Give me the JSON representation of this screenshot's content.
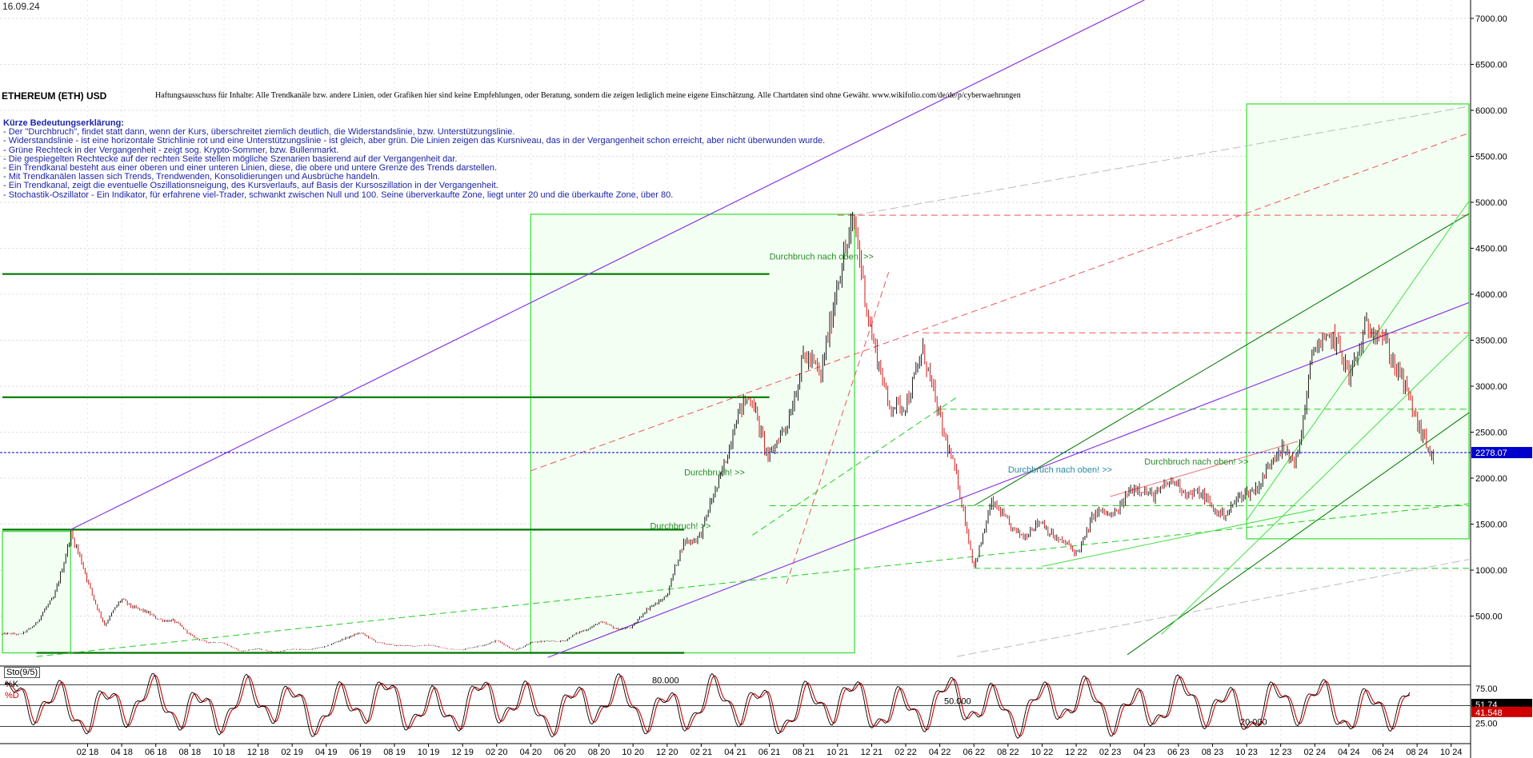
{
  "date": "16.09.24",
  "title": "ETHEREUM (ETH) USD",
  "disclaimer": "Haftungsausschuss für Inhalte: Alle Trendkanäle bzw. andere Linien, oder Grafiken hier sind keine Empfehlungen, oder Beratung, sondern die zeigen lediglich meine eigene Einschätzung. Alle Chartdaten sind ohne Gewähr.  www.wikifolio.com/de/de/p/cyberwaehrungen",
  "legend": {
    "heading": "Kürze Bedeutungserklärung:",
    "lines": [
      "- Der \"Durchbruch\", findet statt dann, wenn der Kurs, überschreitet ziemlich deutlich, die Widerstandslinie, bzw. Unterstützungslinie.",
      "- Widerstandslinie - ist eine horizontale Strichlinie rot und eine Unterstützungslinie - ist gleich, aber grün. Die Linien zeigen das Kursniveau, das in der Vergangenheit schon erreicht, aber nicht überwunden wurde.",
      "- Grüne Rechteck in der Vergangenheit - zeigt sog. Krypto-Sommer, bzw. Bullenmarkt.",
      "- Die gespiegelten Rechtecke auf der rechten Seite stellen mögliche Szenarien basierend auf der Vergangenheit dar.",
      "- Ein Trendkanal besteht aus einer oberen und einer unteren Linien, diese, die obere und untere Grenze des Trends darstellen.",
      "- Mit Trendkanälen lassen sich Trends, Trendwenden, Konsolidierungen und Ausbrüche handeln.",
      "- Ein Trendkanal, zeigt die eventuelle Oszillationsneigung, des Kursverlaufs, auf Basis der Kursoszillation in der Vergangenheit.",
      "- Stochastik-Oszillator - Ein Indikator, für erfahrene viel-Trader, schwankt zwischen Null und 100. Seine überverkaufte Zone, liegt unter 20 und die überkaufte Zone, über 80."
    ]
  },
  "colors": {
    "candle_up": "#000000",
    "candle_down": "#d00000",
    "box_green": "#33dd33",
    "box_fill": "#f3fff3",
    "dark_green": "#007700",
    "purple": "#8a3ae0",
    "red_dash": "#ee5555",
    "green_dash": "#22cc22",
    "gray_dash": "#bbbbbb",
    "price_line": "#0000cc",
    "annotation": "#2a8a2a",
    "annotation_teal": "#2a8aa0",
    "k_line": "#000000",
    "d_line": "#d00000"
  },
  "annotations": [
    {
      "text": "Durchbruch nach oben! >>",
      "date": "2021-06",
      "price": 4380,
      "color": "annotation"
    },
    {
      "text": "Durchbruch! >>",
      "date": "2021-01",
      "price": 2030,
      "color": "annotation"
    },
    {
      "text": "Durchbruch! >>",
      "date": "2020-11",
      "price": 1450,
      "color": "annotation"
    },
    {
      "text": "Durchbruch nach oben! >>",
      "date": "2022-08",
      "price": 2060,
      "color": "annotation_teal"
    },
    {
      "text": "Durchbruch nach oben! >>",
      "date": "2023-04",
      "price": 2150,
      "color": "annotation"
    }
  ],
  "chart_data": {
    "type": "candlestick",
    "x_axis": {
      "type": "date",
      "range": [
        "2017-09",
        "2024-11"
      ],
      "tick_labels": [
        "02 18",
        "04 18",
        "06 18",
        "08 18",
        "10 18",
        "12 18",
        "02 19",
        "04 19",
        "06 19",
        "08 19",
        "10 19",
        "12 19",
        "02 20",
        "04 20",
        "06 20",
        "08 20",
        "10 20",
        "12 20",
        "02 21",
        "04 21",
        "06 21",
        "08 21",
        "10 21",
        "12 21",
        "02 22",
        "04 22",
        "06 22",
        "08 22",
        "10 22",
        "12 22",
        "02 23",
        "04 23",
        "06 23",
        "08 23",
        "10 23",
        "12 23",
        "02 24",
        "04 24",
        "06 24",
        "08 24",
        "10 24"
      ]
    },
    "y_axis": {
      "position": "right",
      "ylim": [
        0,
        7200
      ],
      "ticks": [
        500,
        1000,
        1500,
        2000,
        2500,
        3000,
        3500,
        4000,
        4500,
        5000,
        5500,
        6000,
        6500,
        7000
      ],
      "tick_labels": [
        "500.00",
        "1000.00",
        "1500.00",
        "2000.00",
        "2500.00",
        "3000.00",
        "3500.00",
        "4000.00",
        "4500.00",
        "5000.00",
        "5500.00",
        "6000.00",
        "6500.00",
        "7000.00"
      ],
      "grid": true
    },
    "last_price": 2278.07,
    "last_price_label": "2278.07",
    "price_path": [
      [
        "2017-09",
        300
      ],
      [
        "2017-10",
        300
      ],
      [
        "2017-11",
        420
      ],
      [
        "2017-12",
        700
      ],
      [
        "2018-01",
        1390
      ],
      [
        "2018-02",
        880
      ],
      [
        "2018-03",
        400
      ],
      [
        "2018-04",
        680
      ],
      [
        "2018-05",
        580
      ],
      [
        "2018-06",
        470
      ],
      [
        "2018-07",
        460
      ],
      [
        "2018-08",
        290
      ],
      [
        "2018-09",
        220
      ],
      [
        "2018-10",
        200
      ],
      [
        "2018-11",
        120
      ],
      [
        "2018-12",
        140
      ],
      [
        "2019-01",
        110
      ],
      [
        "2019-02",
        135
      ],
      [
        "2019-03",
        140
      ],
      [
        "2019-04",
        165
      ],
      [
        "2019-05",
        260
      ],
      [
        "2019-06",
        310
      ],
      [
        "2019-07",
        220
      ],
      [
        "2019-08",
        175
      ],
      [
        "2019-09",
        180
      ],
      [
        "2019-10",
        180
      ],
      [
        "2019-11",
        150
      ],
      [
        "2019-12",
        130
      ],
      [
        "2020-01",
        180
      ],
      [
        "2020-02",
        230
      ],
      [
        "2020-03",
        130
      ],
      [
        "2020-04",
        205
      ],
      [
        "2020-05",
        230
      ],
      [
        "2020-06",
        230
      ],
      [
        "2020-07",
        340
      ],
      [
        "2020-08",
        430
      ],
      [
        "2020-09",
        360
      ],
      [
        "2020-10",
        390
      ],
      [
        "2020-11",
        600
      ],
      [
        "2020-12",
        740
      ],
      [
        "2021-01",
        1300
      ],
      [
        "2021-02",
        1420
      ],
      [
        "2021-03",
        1900
      ],
      [
        "2021-04",
        2700
      ],
      [
        "2021-05",
        2800
      ],
      [
        "2021-06",
        2270
      ],
      [
        "2021-07",
        2500
      ],
      [
        "2021-08",
        3430
      ],
      [
        "2021-09",
        3000
      ],
      [
        "2021-10",
        4300
      ],
      [
        "2021-11",
        4630
      ],
      [
        "2021-12",
        3680
      ],
      [
        "2022-01",
        2680
      ],
      [
        "2022-02",
        2900
      ],
      [
        "2022-03",
        3280
      ],
      [
        "2022-04",
        2730
      ],
      [
        "2022-05",
        1940
      ],
      [
        "2022-06",
        1070
      ],
      [
        "2022-07",
        1680
      ],
      [
        "2022-08",
        1550
      ],
      [
        "2022-09",
        1330
      ],
      [
        "2022-10",
        1570
      ],
      [
        "2022-11",
        1290
      ],
      [
        "2022-12",
        1200
      ],
      [
        "2023-01",
        1580
      ],
      [
        "2023-02",
        1600
      ],
      [
        "2023-03",
        1820
      ],
      [
        "2023-04",
        1870
      ],
      [
        "2023-05",
        1870
      ],
      [
        "2023-06",
        1930
      ],
      [
        "2023-07",
        1850
      ],
      [
        "2023-08",
        1650
      ],
      [
        "2023-09",
        1670
      ],
      [
        "2023-10",
        1810
      ],
      [
        "2023-11",
        2050
      ],
      [
        "2023-12",
        2280
      ],
      [
        "2024-01",
        2280
      ],
      [
        "2024-02",
        3380
      ],
      [
        "2024-03",
        3650
      ],
      [
        "2024-04",
        3010
      ],
      [
        "2024-05",
        3760
      ],
      [
        "2024-06",
        3430
      ],
      [
        "2024-07",
        3230
      ],
      [
        "2024-08",
        2510
      ],
      [
        "2024-09",
        2278
      ]
    ],
    "green_boxes": [
      {
        "x": [
          "2017-09",
          "2018-01"
        ],
        "y": [
          100,
          1420
        ]
      },
      {
        "x": [
          "2020-04",
          "2021-11"
        ],
        "y": [
          100,
          4870
        ]
      },
      {
        "x": [
          "2023-10",
          "2025-02"
        ],
        "y": [
          1340,
          6070
        ]
      }
    ],
    "horizontal_levels": [
      {
        "y": 4860,
        "style": "red_dash",
        "x": [
          "2021-10",
          "2025-02"
        ]
      },
      {
        "y": 3580,
        "style": "red_dash",
        "x": [
          "2022-03",
          "2025-02"
        ]
      },
      {
        "y": 2750,
        "style": "green_dash",
        "x": [
          "2022-04",
          "2025-02"
        ]
      },
      {
        "y": 1700,
        "style": "green_dash",
        "x": [
          "2021-06",
          "2025-02"
        ]
      },
      {
        "y": 1020,
        "style": "green_dash",
        "x": [
          "2022-06",
          "2025-02"
        ]
      },
      {
        "y": 4220,
        "style": "dark_green",
        "x": [
          "2017-09",
          "2021-06"
        ]
      },
      {
        "y": 2880,
        "style": "dark_green",
        "x": [
          "2017-09",
          "2021-06"
        ]
      },
      {
        "y": 1440,
        "style": "dark_green",
        "x": [
          "2017-09",
          "2021-01"
        ]
      },
      {
        "y": 100,
        "style": "dark_green",
        "x": [
          "2017-11",
          "2021-01"
        ]
      }
    ],
    "trend_lines": [
      {
        "from": [
          "2018-01",
          1440
        ],
        "to": [
          "2023-04",
          7200
        ],
        "style": "purple"
      },
      {
        "from": [
          "2020-05",
          50
        ],
        "to": [
          "2025-02",
          4120
        ],
        "style": "purple"
      },
      {
        "from": [
          "2020-04",
          2080
        ],
        "to": [
          "2025-02",
          5950
        ],
        "style": "red_dash"
      },
      {
        "from": [
          "2021-11",
          4860
        ],
        "to": [
          "2025-02",
          6140
        ],
        "style": "gray_dash"
      },
      {
        "from": [
          "2017-11",
          60
        ],
        "to": [
          "2025-02",
          1780
        ],
        "style": "green_dash"
      },
      {
        "from": [
          "2022-05",
          60
        ],
        "to": [
          "2025-02",
          1220
        ],
        "style": "gray_dash"
      },
      {
        "from": [
          "2021-07",
          850
        ],
        "to": [
          "2022-01",
          4240
        ],
        "style": "red_dash"
      },
      {
        "from": [
          "2021-05",
          1380
        ],
        "to": [
          "2022-05",
          2880
        ],
        "style": "green_dash"
      },
      {
        "from": [
          "2023-02",
          1800
        ],
        "to": [
          "2024-01",
          2400
        ],
        "style": "red_thin"
      },
      {
        "from": [
          "2022-06",
          1700
        ],
        "to": [
          "2025-02",
          5200
        ],
        "style": "dark_green_thin"
      },
      {
        "from": [
          "2023-03",
          80
        ],
        "to": [
          "2025-02",
          3100
        ],
        "style": "dark_green_thin"
      },
      {
        "from": [
          "2023-10",
          1540
        ],
        "to": [
          "2025-02",
          5800
        ],
        "style": "green_thin"
      },
      {
        "from": [
          "2023-05",
          300
        ],
        "to": [
          "2025-02",
          4100
        ],
        "style": "green_thin"
      },
      {
        "from": [
          "2022-10",
          1040
        ],
        "to": [
          "2024-02",
          1660
        ],
        "style": "green_thin"
      }
    ],
    "indicator": {
      "name": "Sto(9/5)",
      "k_label": "%K",
      "d_label": "%D",
      "ylim": [
        0,
        100
      ],
      "levels": [
        20,
        50,
        80
      ],
      "level_labels": [
        "20.000",
        "50.000",
        "80.000"
      ],
      "right_ticks": [
        25,
        75
      ],
      "right_tick_labels": [
        "25.00",
        "75.00"
      ],
      "k_last": 51.74,
      "d_last": 41.548,
      "k_last_label": "51.74",
      "d_last_label": "41.548"
    }
  }
}
